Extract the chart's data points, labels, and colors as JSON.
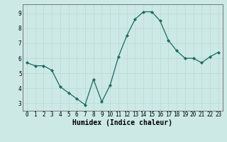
{
  "x": [
    0,
    1,
    2,
    3,
    4,
    5,
    6,
    7,
    8,
    9,
    10,
    11,
    12,
    13,
    14,
    15,
    16,
    17,
    18,
    19,
    20,
    21,
    22,
    23
  ],
  "y": [
    5.7,
    5.5,
    5.5,
    5.2,
    4.1,
    3.7,
    3.3,
    2.9,
    4.6,
    3.1,
    4.2,
    6.1,
    7.5,
    8.6,
    9.1,
    9.1,
    8.5,
    7.2,
    6.5,
    6.0,
    6.0,
    5.7,
    6.1,
    6.4
  ],
  "xlabel": "Humidex (Indice chaleur)",
  "bg_color": "#cce9e6",
  "line_color": "#1a6b5e",
  "marker_color": "#1a6b5e",
  "grid_color": "#b8d8d4",
  "ylim": [
    2.5,
    9.6
  ],
  "xlim": [
    -0.5,
    23.5
  ],
  "yticks": [
    3,
    4,
    5,
    6,
    7,
    8,
    9
  ],
  "xticks": [
    0,
    1,
    2,
    3,
    4,
    5,
    6,
    7,
    8,
    9,
    10,
    11,
    12,
    13,
    14,
    15,
    16,
    17,
    18,
    19,
    20,
    21,
    22,
    23
  ],
  "tick_fontsize": 5.5,
  "xlabel_fontsize": 7.0,
  "xlabel_fontweight": "bold"
}
